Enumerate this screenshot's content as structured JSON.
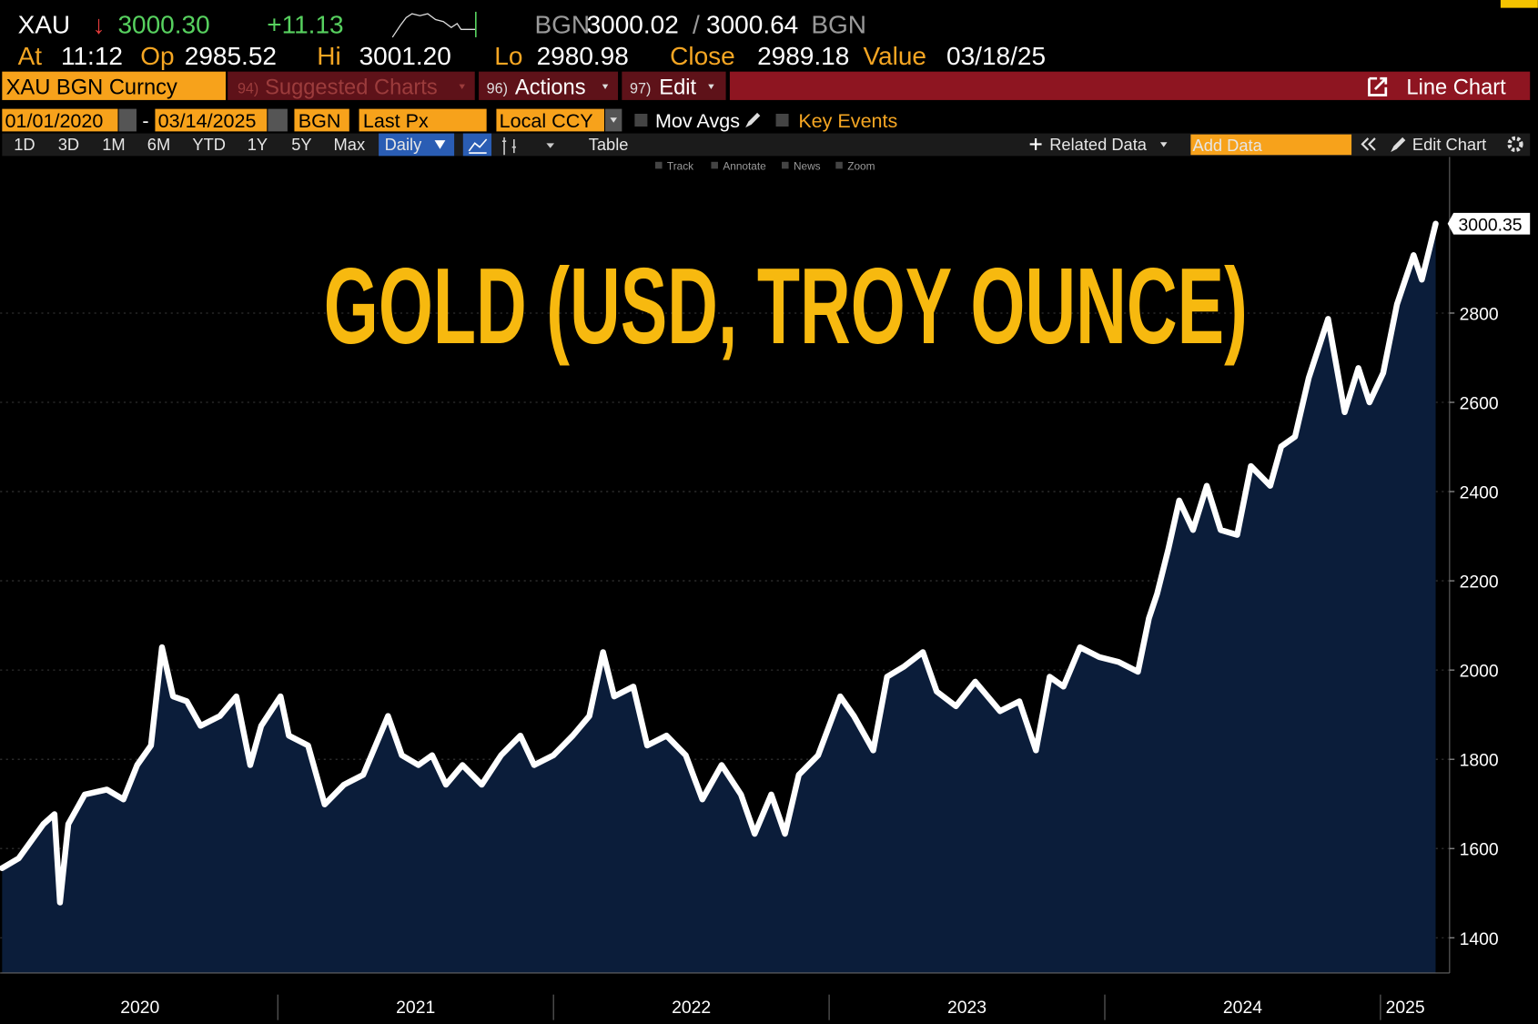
{
  "header": {
    "symbol": "XAU",
    "direction": "↓",
    "last": "3000.30",
    "change": "+11.13",
    "bid_source": "BGN",
    "bid": "3000.02",
    "separator": "/",
    "ask": "3000.64",
    "ask_source": "BGN"
  },
  "quote": {
    "at_label": "At",
    "at": "11:12",
    "open_label": "Op",
    "open": "2985.52",
    "high_label": "Hi",
    "high": "3001.20",
    "low_label": "Lo",
    "low": "2980.98",
    "close_label": "Close",
    "close": "2989.18",
    "value_label": "Value",
    "value_date": "03/18/25"
  },
  "toolbar": {
    "security": "XAU BGN Curncy",
    "suggested_num": "94)",
    "suggested": "Suggested Charts",
    "actions_num": "96)",
    "actions": "Actions",
    "edit_num": "97)",
    "edit": "Edit",
    "chart_type": "Line Chart"
  },
  "settings": {
    "start": "01/01/2020",
    "dash": "-",
    "end": "03/14/2025",
    "source": "BGN",
    "field": "Last Px",
    "currency": "Local CCY",
    "mov_avgs": "Mov Avgs",
    "key_events": "Key Events"
  },
  "ranges": {
    "periods": [
      "1D",
      "3D",
      "1M",
      "6M",
      "YTD",
      "1Y",
      "5Y",
      "Max"
    ],
    "frequency": "Daily",
    "table": "Table",
    "related": "Related Data",
    "add_data": "Add Data",
    "edit_chart": "Edit Chart"
  },
  "tools": [
    "Track",
    "Annotate",
    "News",
    "Zoom"
  ],
  "chart_data": {
    "type": "area",
    "title": "GOLD (USD, TROY OUNCE)",
    "last_value_label": "3000.35",
    "line_color": "#ffffff",
    "fill_color": "#0b1d3a",
    "x": [
      2020.0,
      2020.06,
      2020.15,
      2020.19,
      2020.21,
      2020.24,
      2020.3,
      2020.38,
      2020.44,
      2020.49,
      2020.54,
      2020.58,
      2020.62,
      2020.67,
      2020.72,
      2020.79,
      2020.85,
      2020.9,
      2020.94,
      2021.01,
      2021.04,
      2021.11,
      2021.17,
      2021.24,
      2021.31,
      2021.4,
      2021.45,
      2021.51,
      2021.56,
      2021.61,
      2021.67,
      2021.74,
      2021.81,
      2021.88,
      2021.93,
      2022.0,
      2022.07,
      2022.13,
      2022.18,
      2022.22,
      2022.29,
      2022.34,
      2022.41,
      2022.48,
      2022.54,
      2022.61,
      2022.68,
      2022.73,
      2022.79,
      2022.84,
      2022.89,
      2022.96,
      2023.04,
      2023.09,
      2023.16,
      2023.21,
      2023.27,
      2023.34,
      2023.39,
      2023.46,
      2023.53,
      2023.62,
      2023.69,
      2023.75,
      2023.8,
      2023.85,
      2023.91,
      2023.98,
      2024.05,
      2024.12,
      2024.16,
      2024.19,
      2024.23,
      2024.27,
      2024.32,
      2024.37,
      2024.42,
      2024.48,
      2024.53,
      2024.6,
      2024.64,
      2024.69,
      2024.74,
      2024.81,
      2024.87,
      2024.92,
      2024.96,
      2025.01,
      2025.06,
      2025.12,
      2025.15,
      2025.2
    ],
    "values": [
      1556,
      1578,
      1655,
      1677,
      1479,
      1655,
      1721,
      1732,
      1710,
      1787,
      1831,
      2051,
      1941,
      1930,
      1875,
      1897,
      1941,
      1787,
      1875,
      1941,
      1853,
      1831,
      1699,
      1743,
      1765,
      1897,
      1809,
      1787,
      1809,
      1743,
      1787,
      1743,
      1809,
      1853,
      1787,
      1809,
      1853,
      1897,
      2040,
      1941,
      1963,
      1831,
      1853,
      1809,
      1710,
      1787,
      1721,
      1633,
      1721,
      1633,
      1765,
      1809,
      1941,
      1897,
      1820,
      1985,
      2007,
      2040,
      1952,
      1919,
      1974,
      1908,
      1930,
      1820,
      1985,
      1963,
      2051,
      2029,
      2018,
      1996,
      2116,
      2171,
      2270,
      2380,
      2314,
      2413,
      2314,
      2303,
      2457,
      2413,
      2501,
      2523,
      2655,
      2787,
      2578,
      2677,
      2600,
      2666,
      2820,
      2930,
      2875,
      3000.35
    ],
    "xlim": [
      2020,
      2025.24
    ],
    "xticks": [
      {
        "value": 2020.5,
        "label": "2020"
      },
      {
        "value": 2021.5,
        "label": "2021"
      },
      {
        "value": 2022.5,
        "label": "2022"
      },
      {
        "value": 2023.5,
        "label": "2023"
      },
      {
        "value": 2024.5,
        "label": "2024"
      },
      {
        "value": 2025.09,
        "label": "2025"
      }
    ],
    "x_separators": [
      2021,
      2022,
      2023,
      2024,
      2025
    ],
    "ylim": [
      1321,
      3150
    ],
    "yticks": [
      1400,
      1600,
      1800,
      2000,
      2200,
      2400,
      2600,
      2800
    ],
    "grid": true
  }
}
